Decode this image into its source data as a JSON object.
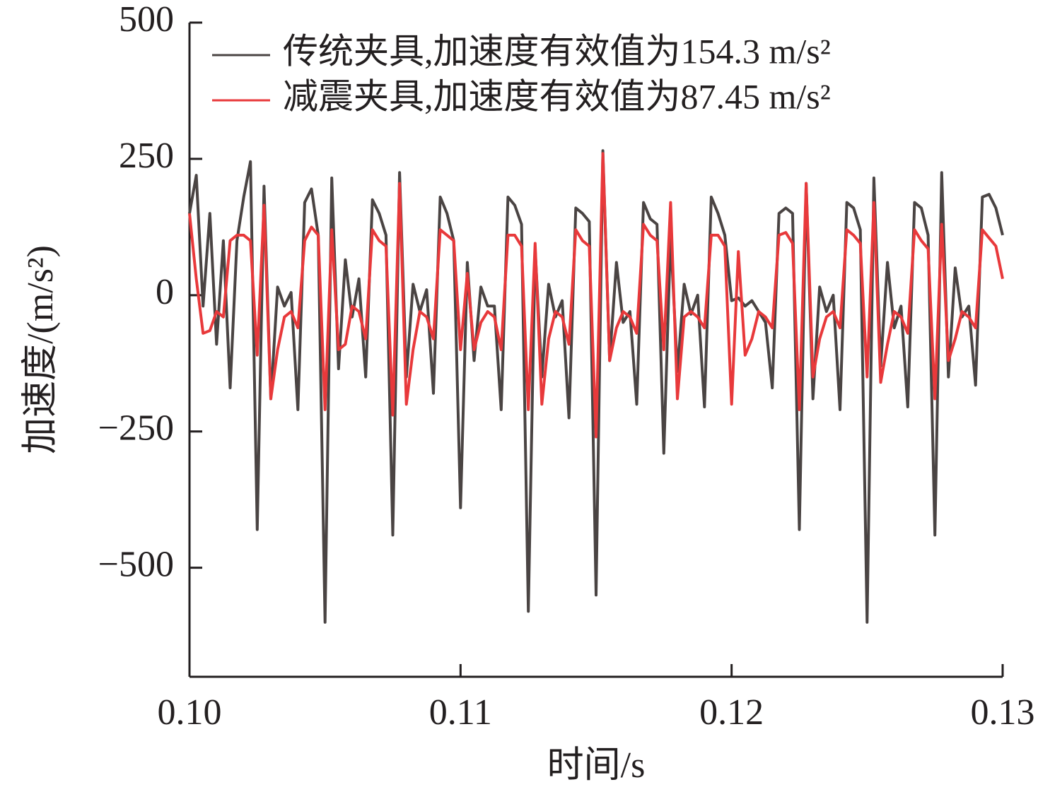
{
  "chart_data": {
    "type": "line",
    "x_label": "时间/s",
    "y_label": "加速度/(m/s²)",
    "x": [
      0.1,
      0.10025,
      0.1005,
      0.10075,
      0.101,
      0.10125,
      0.1015,
      0.10175,
      0.102,
      0.10225,
      0.1025,
      0.10275,
      0.103,
      0.10325,
      0.1035,
      0.10375,
      0.104,
      0.10425,
      0.1045,
      0.10475,
      0.105,
      0.10525,
      0.1055,
      0.10575,
      0.106,
      0.10625,
      0.1065,
      0.10675,
      0.107,
      0.10725,
      0.1075,
      0.10775,
      0.108,
      0.10825,
      0.1085,
      0.10875,
      0.109,
      0.10925,
      0.1095,
      0.10975,
      0.11,
      0.11025,
      0.1105,
      0.11075,
      0.111,
      0.11125,
      0.1115,
      0.11175,
      0.112,
      0.11225,
      0.1125,
      0.11275,
      0.113,
      0.11325,
      0.1135,
      0.11375,
      0.114,
      0.11425,
      0.1145,
      0.11475,
      0.115,
      0.11525,
      0.1155,
      0.11575,
      0.116,
      0.11625,
      0.1165,
      0.11675,
      0.117,
      0.11725,
      0.1175,
      0.11775,
      0.118,
      0.11825,
      0.1185,
      0.11875,
      0.119,
      0.11925,
      0.1195,
      0.11975,
      0.12,
      0.12025,
      0.1205,
      0.12075,
      0.121,
      0.12125,
      0.1215,
      0.12175,
      0.122,
      0.12225,
      0.1225,
      0.12275,
      0.123,
      0.12325,
      0.1235,
      0.12375,
      0.124,
      0.12425,
      0.1245,
      0.12475,
      0.125,
      0.12525,
      0.1255,
      0.12575,
      0.126,
      0.12625,
      0.1265,
      0.12675,
      0.127,
      0.12725,
      0.1275,
      0.12775,
      0.128,
      0.12825,
      0.1285,
      0.12875,
      0.129,
      0.12925,
      0.1295,
      0.12975,
      0.13
    ],
    "series": [
      {
        "name": "传统夹具,加速度有效值为154.3 m/s²",
        "color": "#4a4443",
        "values": [
          150,
          220,
          -20,
          150,
          -90,
          100,
          -170,
          100,
          180,
          245,
          -430,
          200,
          -190,
          15,
          -20,
          5,
          -210,
          170,
          195,
          110,
          -600,
          215,
          -135,
          65,
          -40,
          30,
          -150,
          175,
          150,
          110,
          -440,
          225,
          -150,
          20,
          -30,
          10,
          -180,
          180,
          150,
          100,
          -390,
          60,
          -120,
          15,
          -20,
          -20,
          -210,
          180,
          165,
          130,
          -580,
          85,
          -150,
          20,
          -40,
          -10,
          -225,
          160,
          150,
          135,
          -550,
          265,
          -120,
          60,
          -50,
          -30,
          -200,
          170,
          140,
          130,
          -290,
          110,
          -140,
          20,
          -35,
          0,
          -205,
          180,
          150,
          110,
          -10,
          -5,
          -20,
          -10,
          -30,
          -50,
          -170,
          150,
          160,
          150,
          -430,
          205,
          -190,
          15,
          -30,
          0,
          -210,
          170,
          160,
          120,
          -600,
          215,
          -130,
          60,
          -60,
          -20,
          -205,
          170,
          160,
          110,
          -440,
          225,
          -150,
          50,
          -40,
          -20,
          -165,
          180,
          185,
          160,
          110
        ]
      },
      {
        "name": "减震夹具,加速度有效值为87.45 m/s²",
        "color": "#e8393b",
        "values": [
          150,
          30,
          -70,
          -65,
          -30,
          -40,
          100,
          110,
          110,
          100,
          -110,
          165,
          -190,
          -100,
          -40,
          -30,
          -60,
          100,
          125,
          110,
          -210,
          120,
          -100,
          -90,
          -20,
          -30,
          -80,
          120,
          100,
          90,
          -220,
          205,
          -200,
          -100,
          -30,
          -40,
          -80,
          120,
          110,
          100,
          -100,
          40,
          -100,
          -50,
          -30,
          -40,
          -100,
          110,
          110,
          90,
          -210,
          95,
          -200,
          -80,
          -30,
          -40,
          -90,
          120,
          100,
          90,
          -260,
          260,
          -120,
          -60,
          -30,
          -40,
          -70,
          130,
          110,
          100,
          -100,
          170,
          -190,
          -40,
          -30,
          -40,
          -60,
          110,
          110,
          90,
          -200,
          80,
          -110,
          -80,
          -30,
          -40,
          -60,
          110,
          115,
          95,
          -210,
          205,
          -150,
          -80,
          -40,
          -30,
          -60,
          120,
          110,
          95,
          -150,
          170,
          -160,
          -90,
          -30,
          -40,
          -70,
          120,
          100,
          85,
          -190,
          130,
          -120,
          -80,
          -30,
          -40,
          -60,
          120,
          105,
          90,
          30
        ]
      }
    ],
    "xlim": [
      0.1,
      0.13
    ],
    "ylim": [
      -700,
      500
    ],
    "xticks": [
      {
        "value": 0.1,
        "label": "0.10"
      },
      0.11,
      0.12,
      0.13
    ],
    "yticks": [
      {
        "value": -500,
        "label": "−500"
      },
      {
        "value": -250,
        "label": "−250"
      },
      0,
      250,
      500
    ],
    "legend": "upper right"
  }
}
